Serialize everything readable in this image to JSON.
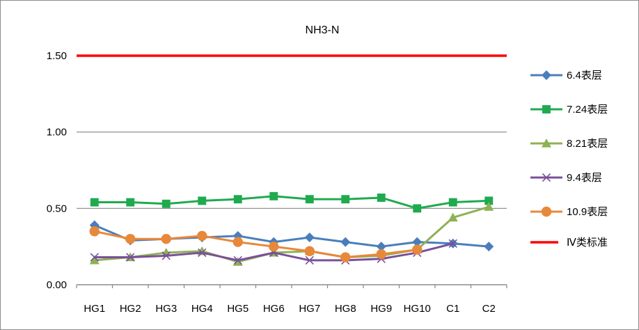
{
  "chart_data": {
    "type": "line",
    "title": "NH3-N",
    "xlabel": "",
    "ylabel": "",
    "categories": [
      "HG1",
      "HG2",
      "HG3",
      "HG4",
      "HG5",
      "HG6",
      "HG7",
      "HG8",
      "HG9",
      "HG10",
      "C1",
      "C2"
    ],
    "ylim": [
      0,
      1.5
    ],
    "yticks": [
      "0.00",
      "0.50",
      "1.00",
      "1.50"
    ],
    "grid": true,
    "legend_position": "right",
    "series": [
      {
        "name": "6.4表层",
        "color": "#4a7ebb",
        "marker": "diamond",
        "values": [
          0.39,
          0.29,
          0.3,
          0.31,
          0.32,
          0.28,
          0.31,
          0.28,
          0.25,
          0.28,
          0.27,
          0.25
        ]
      },
      {
        "name": "7.24表层",
        "color": "#1faa4f",
        "marker": "square",
        "values": [
          0.54,
          0.54,
          0.53,
          0.55,
          0.56,
          0.58,
          0.56,
          0.56,
          0.57,
          0.5,
          0.54,
          0.55
        ]
      },
      {
        "name": "8.21表层",
        "color": "#8db255",
        "marker": "triangle",
        "values": [
          0.16,
          0.18,
          0.21,
          0.22,
          0.15,
          0.21,
          0.22,
          0.18,
          0.19,
          0.23,
          0.44,
          0.51
        ]
      },
      {
        "name": "9.4表层",
        "color": "#7a4f9b",
        "marker": "x",
        "values": [
          0.18,
          0.18,
          0.19,
          0.21,
          0.16,
          0.21,
          0.16,
          0.16,
          0.17,
          0.21,
          0.27,
          null
        ]
      },
      {
        "name": "10.9表层",
        "color": "#e8883a",
        "marker": "circle",
        "values": [
          0.35,
          0.3,
          0.3,
          0.32,
          0.28,
          0.25,
          0.22,
          0.18,
          0.2,
          0.23,
          null,
          null
        ]
      }
    ],
    "reference_line": {
      "name": "Ⅳ类标准",
      "value": 1.5,
      "color": "#ff0000"
    }
  }
}
